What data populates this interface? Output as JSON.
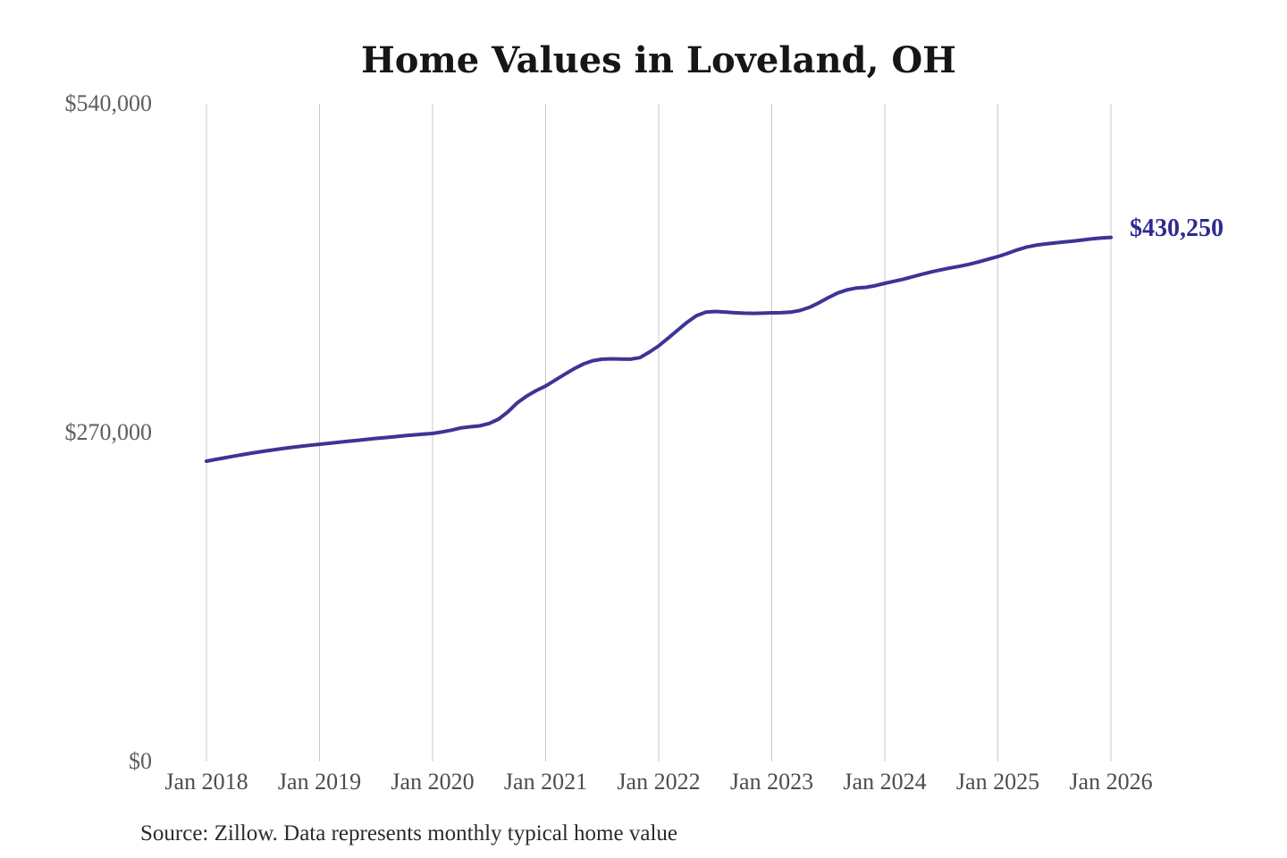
{
  "page": {
    "background_color": "#ffffff"
  },
  "chart_data": {
    "type": "line",
    "title": "Home Values in Loveland, OH",
    "source_note": "Source: Zillow. Data represents monthly typical home value",
    "grid": "vertical-only",
    "grid_color": "#c9c9c9",
    "ylim": [
      0,
      540000
    ],
    "x_range": [
      "Jan 2018",
      "Jan 2026"
    ],
    "x_tick_labels": [
      "Jan 2018",
      "Jan 2019",
      "Jan 2020",
      "Jan 2021",
      "Jan 2022",
      "Jan 2023",
      "Jan 2024",
      "Jan 2025",
      "Jan 2026"
    ],
    "y_ticks": [
      {
        "label": "$540,000",
        "value": 540000
      },
      {
        "label": "$270,000",
        "value": 270000
      },
      {
        "label": "$0",
        "value": 0
      }
    ],
    "end_annotation": {
      "text": "$430,250",
      "value": 430250,
      "color": "#2e2c8f"
    },
    "series": [
      {
        "name": "Monthly typical home value",
        "color": "#3c3496",
        "start_month": "2018-01",
        "end_month": "2026-01",
        "interval": "monthly",
        "values": [
          246500,
          248000,
          249400,
          250800,
          252100,
          253400,
          254600,
          255700,
          256800,
          257800,
          258700,
          259600,
          260400,
          261200,
          262000,
          262800,
          263600,
          264400,
          265200,
          265900,
          266600,
          267400,
          268100,
          268700,
          269300,
          270500,
          272000,
          273800,
          274800,
          275500,
          277500,
          281000,
          287000,
          294500,
          300000,
          304500,
          308200,
          313000,
          317800,
          322300,
          326300,
          329000,
          330200,
          330500,
          330300,
          330200,
          331500,
          336000,
          341200,
          347500,
          354000,
          360500,
          366000,
          368800,
          369400,
          369000,
          368400,
          368000,
          367900,
          368000,
          368300,
          368400,
          368800,
          370200,
          372800,
          376500,
          380800,
          384600,
          387200,
          388700,
          389200,
          390600,
          392500,
          394200,
          396000,
          398000,
          400100,
          402000,
          403700,
          405200,
          406600,
          408200,
          410200,
          412400,
          414500,
          417000,
          419800,
          422200,
          423800,
          424800,
          425600,
          426400,
          427200,
          428100,
          429100,
          429800,
          430250
        ]
      }
    ]
  }
}
